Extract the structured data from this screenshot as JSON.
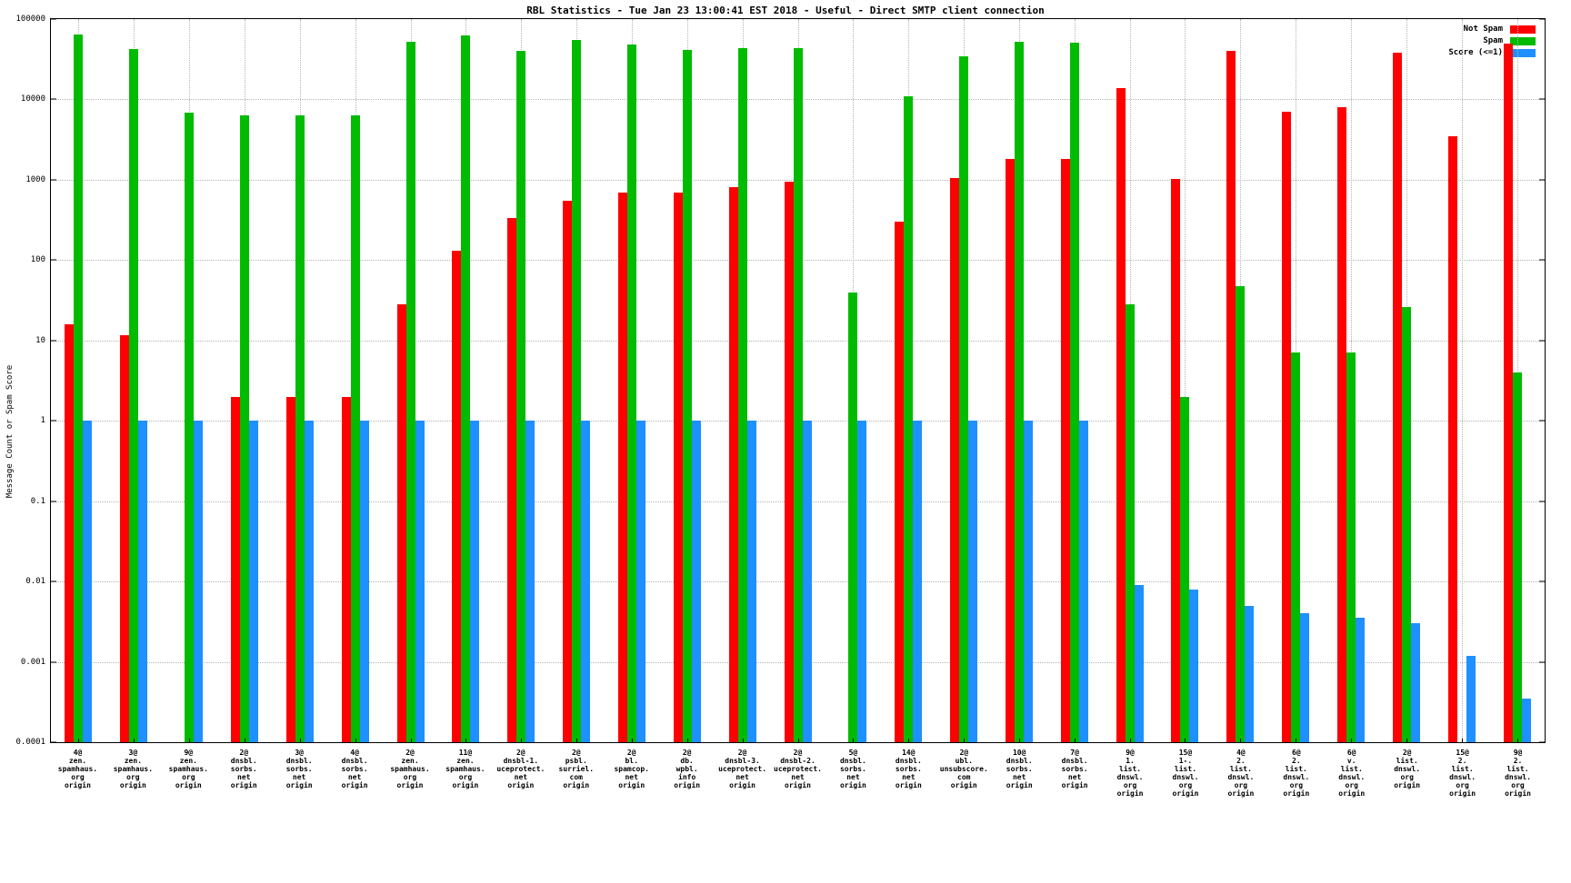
{
  "title": "RBL Statistics - Tue Jan 23 13:00:41 EST 2018 - Useful - Direct SMTP client connection",
  "ylabel": "Message Count or Spam Score",
  "legend": [
    {
      "label": "Not Spam",
      "color": "#ff0000"
    },
    {
      "label": "Spam",
      "color": "#00bb00"
    },
    {
      "label": "Score (<=1)",
      "color": "#1e90ff"
    }
  ],
  "chart_data": {
    "type": "bar",
    "y_scale": "log",
    "ylim": [
      0.0001,
      100000
    ],
    "yticks": [
      100000,
      10000,
      1000,
      100,
      10,
      1,
      0.1,
      0.01,
      0.001,
      0.0001
    ],
    "grid": true,
    "legend_position": "top-right",
    "title": "RBL Statistics - Tue Jan 23 13:00:41 EST 2018 - Useful - Direct SMTP client connection",
    "xlabel": "",
    "ylabel": "Message Count or Spam Score",
    "categories": [
      [
        "4@",
        "zen.",
        "spamhaus.",
        "org",
        "origin"
      ],
      [
        "3@",
        "zen.",
        "spamhaus.",
        "org",
        "origin"
      ],
      [
        "9@",
        "zen.",
        "spamhaus.",
        "org",
        "origin"
      ],
      [
        "2@",
        "dnsbl.",
        "sorbs.",
        "net",
        "origin"
      ],
      [
        "3@",
        "dnsbl.",
        "sorbs.",
        "net",
        "origin"
      ],
      [
        "4@",
        "dnsbl.",
        "sorbs.",
        "net",
        "origin"
      ],
      [
        "2@",
        "zen.",
        "spamhaus.",
        "org",
        "origin"
      ],
      [
        "11@",
        "zen.",
        "spamhaus.",
        "org",
        "origin"
      ],
      [
        "2@",
        "dnsbl-1.",
        "uceprotect.",
        "net",
        "origin"
      ],
      [
        "2@",
        "psbl.",
        "surriel.",
        "com",
        "origin"
      ],
      [
        "2@",
        "bl.",
        "spamcop.",
        "net",
        "origin"
      ],
      [
        "2@",
        "db.",
        "wpbl.",
        "info",
        "origin"
      ],
      [
        "2@",
        "dnsbl-3.",
        "uceprotect.",
        "net",
        "origin"
      ],
      [
        "2@",
        "dnsbl-2.",
        "uceprotect.",
        "net",
        "origin"
      ],
      [
        "5@",
        "dnsbl.",
        "sorbs.",
        "net",
        "origin"
      ],
      [
        "14@",
        "dnsbl.",
        "sorbs.",
        "net",
        "origin"
      ],
      [
        "2@",
        "ubl.",
        "unsubscore.",
        "com",
        "origin"
      ],
      [
        "10@",
        "dnsbl.",
        "sorbs.",
        "net",
        "origin"
      ],
      [
        "7@",
        "dnsbl.",
        "sorbs.",
        "net",
        "origin"
      ],
      [
        "9@",
        "1.",
        "list.",
        "dnswl.",
        "org",
        "origin"
      ],
      [
        "15@",
        "1-.",
        "list.",
        "dnswl.",
        "org",
        "origin"
      ],
      [
        "4@",
        "2.",
        "list.",
        "dnswl.",
        "org",
        "origin"
      ],
      [
        "6@",
        "2.",
        "list.",
        "dnswl.",
        "org",
        "origin"
      ],
      [
        "6@",
        "v.",
        "list.",
        "dnswl.",
        "org",
        "origin"
      ],
      [
        "2@",
        "list.",
        "dnswl.",
        "org",
        "origin"
      ],
      [
        "15@",
        "2.",
        "list.",
        "dnswl.",
        "org",
        "origin"
      ],
      [
        "9@",
        "2.",
        "list.",
        "dnswl.",
        "org",
        "origin"
      ]
    ],
    "series": [
      {
        "name": "Not Spam",
        "color": "#ff0000",
        "values": [
          16,
          11.5,
          null,
          2,
          2,
          2,
          28,
          130,
          330,
          550,
          700,
          700,
          820,
          950,
          null,
          300,
          1050,
          1800,
          1800,
          14000,
          1030,
          40000,
          7000,
          8000,
          38000,
          3500,
          50000
        ]
      },
      {
        "name": "Spam",
        "color": "#00bb00",
        "values": [
          65000,
          42000,
          6800,
          6300,
          6300,
          6400,
          52000,
          63000,
          40000,
          55000,
          48000,
          41000,
          43000,
          44000,
          40,
          11000,
          34000,
          52000,
          51000,
          28,
          2,
          48,
          7,
          7,
          26,
          null,
          4
        ]
      },
      {
        "name": "Score (<=1)",
        "color": "#1e90ff",
        "values": [
          1,
          1,
          1,
          1,
          1,
          1,
          1,
          1,
          1,
          1,
          1,
          1,
          1,
          1,
          1,
          1,
          1,
          1,
          1,
          0.009,
          0.008,
          0.005,
          0.004,
          0.0035,
          0.003,
          0.0012,
          0.00035
        ]
      }
    ]
  }
}
